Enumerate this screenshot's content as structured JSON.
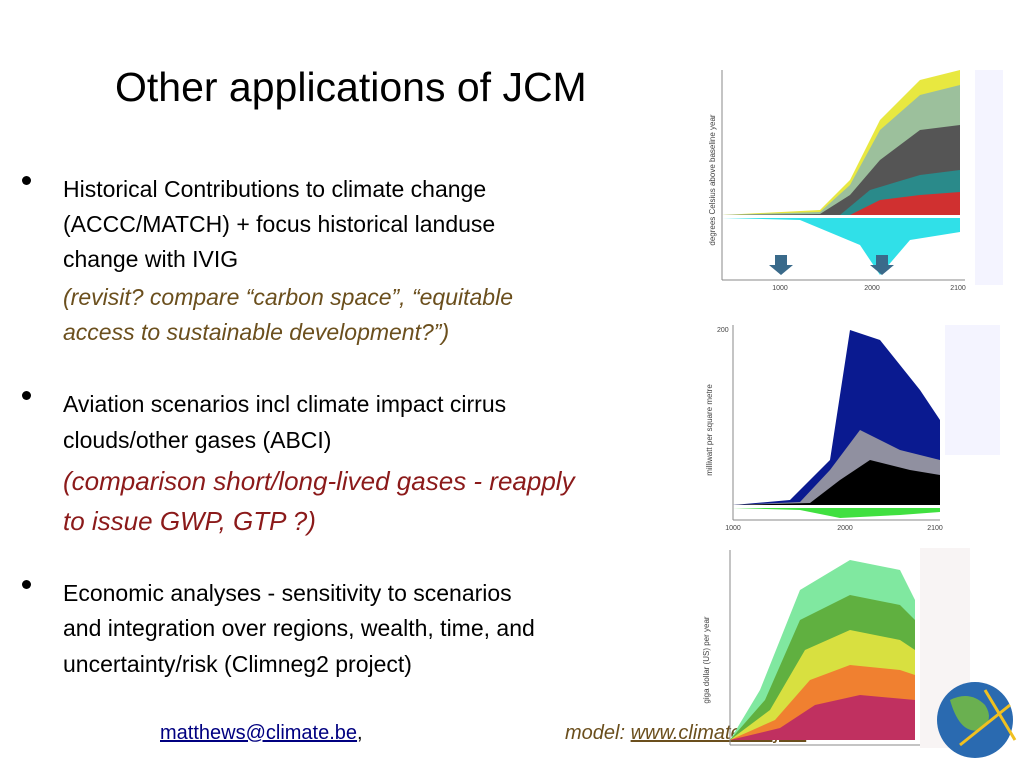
{
  "header": {
    "title": "Other applications of JCM"
  },
  "bullets": [
    {
      "lines": [
        "Historical Contributions to climate change",
        "(ACCC/MATCH) + focus historical landuse",
        "change with IVIG"
      ],
      "note": [
        "(revisit? compare “carbon space”, “equitable",
        "access to sustainable development?”)"
      ]
    },
    {
      "lines": [
        "Aviation scenarios incl climate impact cirrus",
        "clouds/other gases (ABCI)"
      ],
      "note": [
        "(comparison short/long-lived gases - reapply",
        "to issue GWP, GTP ?)"
      ]
    },
    {
      "lines": [
        "Economic analyses - sensitivity to scenarios",
        "and integration over regions, wealth, time, and",
        "uncertainty/risk (Climneg2 project)"
      ]
    }
  ],
  "footer": {
    "email": "matthews@climate.be",
    "separator": ",",
    "model_label": "model:",
    "model_link": "www.climate.be/jcm"
  },
  "charts": [
    {
      "y_label": "degrees Celsius above baseline year",
      "x_ticks": [
        "1000",
        "2000",
        "2100"
      ]
    },
    {
      "y_label": "milliwatt per square metre",
      "x_ticks": [
        "1000",
        "2000",
        "2100"
      ],
      "y_tick": "200"
    },
    {
      "y_label": "giga dollar (US) per year"
    }
  ]
}
